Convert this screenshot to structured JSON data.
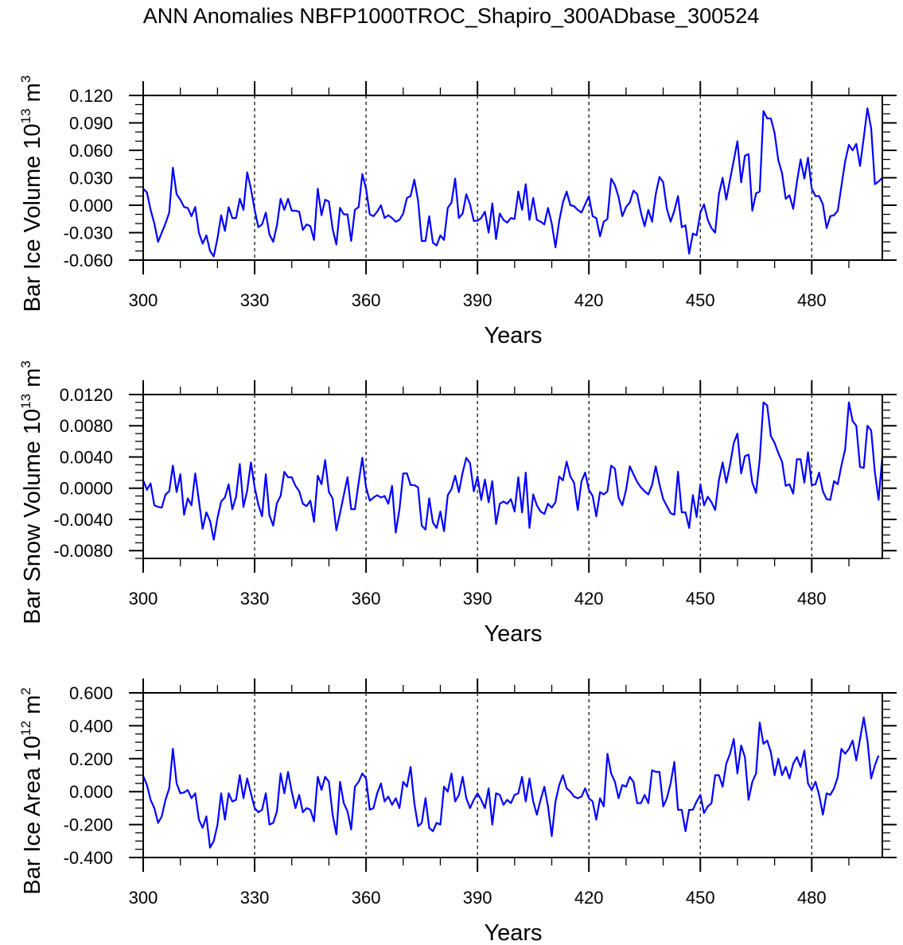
{
  "title": "ANN Anomalies NBFP1000TROC_Shapiro_300ADbase_300524",
  "colors": {
    "line": "#0000ff",
    "axis": "#000000",
    "grid": "#000000",
    "background": "#ffffff"
  },
  "chart_data": [
    {
      "type": "line",
      "ylabel": "Bar Ice Volume 10",
      "ylabel_exp": "13",
      "ylabel_unit": " m",
      "ylabel_unit_exp": "3",
      "xlabel": "Years",
      "xlim": [
        300,
        499
      ],
      "ylim": [
        -0.06,
        0.12
      ],
      "yticks": [
        "0.120",
        "0.090",
        "0.060",
        "0.030",
        "0.000",
        "-0.030",
        "-0.060"
      ],
      "ytick_values": [
        0.12,
        0.09,
        0.06,
        0.03,
        0.0,
        -0.03,
        -0.06
      ],
      "ymajor_step": 0.03,
      "yminor_step": 0.01,
      "xticks": [
        "300",
        "330",
        "360",
        "390",
        "420",
        "450",
        "480"
      ],
      "xtick_values": [
        300,
        330,
        360,
        390,
        420,
        450,
        480
      ],
      "xminor_step": 10,
      "grid": "vertical dashed at major x ticks",
      "x_start": 300,
      "series": [
        {
          "name": "Bar Ice Volume",
          "values": [
            0.018,
            0.014,
            -0.005,
            -0.02,
            -0.04,
            -0.03,
            -0.02,
            -0.008,
            0.041,
            0.012,
            0.006,
            -0.002,
            -0.003,
            -0.012,
            -0.002,
            -0.03,
            -0.042,
            -0.033,
            -0.05,
            -0.056,
            -0.036,
            -0.011,
            -0.028,
            -0.002,
            -0.014,
            -0.014,
            0.007,
            -0.005,
            0.036,
            0.018,
            -0.005,
            -0.024,
            -0.021,
            -0.008,
            -0.032,
            -0.04,
            -0.022,
            0.007,
            -0.005,
            0.007,
            -0.006,
            -0.006,
            -0.007,
            -0.027,
            -0.021,
            -0.023,
            -0.038,
            0.018,
            -0.011,
            0.006,
            0.004,
            -0.026,
            -0.043,
            -0.003,
            -0.01,
            -0.01,
            -0.039,
            -0.005,
            -0.002,
            0.034,
            0.018,
            -0.01,
            -0.012,
            -0.007,
            0.0,
            -0.014,
            -0.011,
            -0.014,
            -0.018,
            -0.016,
            -0.009,
            0.008,
            0.01,
            0.028,
            0.005,
            -0.039,
            -0.039,
            -0.012,
            -0.041,
            -0.044,
            -0.033,
            -0.038,
            -0.003,
            0.003,
            0.029,
            -0.014,
            -0.009,
            0.012,
            0.001,
            -0.017,
            -0.017,
            -0.014,
            -0.007,
            -0.03,
            0.002,
            -0.037,
            -0.009,
            -0.016,
            -0.019,
            -0.014,
            -0.015,
            0.015,
            -0.005,
            0.023,
            -0.016,
            0.008,
            -0.016,
            -0.018,
            -0.021,
            -0.003,
            -0.02,
            -0.046,
            -0.017,
            0.003,
            0.015,
            0.0,
            -0.001,
            -0.005,
            -0.008,
            0.001,
            0.01,
            -0.012,
            -0.014,
            -0.034,
            -0.018,
            -0.015,
            0.029,
            0.022,
            0.009,
            -0.012,
            -0.002,
            0.003,
            0.016,
            0.012,
            -0.008,
            -0.023,
            -0.005,
            -0.018,
            0.012,
            0.031,
            0.025,
            -0.004,
            -0.018,
            -0.006,
            0.01,
            -0.024,
            -0.022,
            -0.053,
            -0.031,
            -0.033,
            -0.008,
            0.001,
            -0.016,
            -0.025,
            -0.03,
            0.012,
            0.03,
            0.006,
            0.028,
            0.049,
            0.07,
            0.025,
            0.054,
            0.056,
            -0.006,
            0.013,
            0.015,
            0.103,
            0.095,
            0.095,
            0.079,
            0.049,
            0.035,
            0.007,
            0.011,
            -0.004,
            0.025,
            0.05,
            0.029,
            0.052,
            0.018,
            0.01,
            0.01,
            0.001,
            -0.025,
            -0.012,
            -0.011,
            -0.006,
            0.021,
            0.048,
            0.066,
            0.06,
            0.067,
            0.043,
            0.074,
            0.106,
            0.084,
            0.023,
            0.026,
            0.03
          ]
        }
      ]
    },
    {
      "type": "line",
      "ylabel": "Bar Snow Volume 10",
      "ylabel_exp": "13",
      "ylabel_unit": " m",
      "ylabel_unit_exp": "3",
      "xlabel": "Years",
      "xlim": [
        300,
        499
      ],
      "ylim": [
        -0.009,
        0.012
      ],
      "yticks": [
        "0.0120",
        "0.0080",
        "0.0040",
        "0.0000",
        "-0.0040",
        "-0.0080"
      ],
      "ytick_values": [
        0.012,
        0.008,
        0.004,
        0.0,
        -0.004,
        -0.008
      ],
      "ymajor_step": 0.004,
      "yminor_step": 0.001,
      "xticks": [
        "300",
        "330",
        "360",
        "390",
        "420",
        "450",
        "480"
      ],
      "xtick_values": [
        300,
        330,
        360,
        390,
        420,
        450,
        480
      ],
      "xminor_step": 10,
      "grid": "vertical dashed at major x ticks",
      "x_start": 300,
      "series": [
        {
          "name": "Bar Snow Volume",
          "values": [
            0.001,
            -0.0002,
            0.0006,
            -0.0022,
            -0.0024,
            -0.0025,
            -0.0008,
            -0.0004,
            0.0029,
            -0.0005,
            0.0018,
            -0.0034,
            -0.0013,
            -0.0022,
            0.0019,
            -0.0016,
            -0.0052,
            -0.0031,
            -0.0042,
            -0.0066,
            -0.0038,
            -0.0017,
            -0.0012,
            0.0005,
            -0.0027,
            -0.0011,
            0.0031,
            -0.0024,
            -0.0003,
            0.0033,
            0.0001,
            -0.0021,
            -0.0036,
            0.0018,
            -0.0035,
            -0.0048,
            -0.0019,
            -0.001,
            0.0021,
            0.0014,
            0.0014,
            0.0003,
            -0.0004,
            -0.002,
            -0.0023,
            -0.0016,
            -0.0043,
            0.0016,
            0.0005,
            0.0036,
            -0.0005,
            -0.0013,
            -0.0054,
            -0.0032,
            -0.0009,
            0.0014,
            -0.0027,
            -0.0027,
            0.0007,
            0.0039,
            0.0001,
            -0.0016,
            -0.0012,
            -0.0009,
            -0.0012,
            -0.001,
            -0.002,
            0.0003,
            -0.0057,
            -0.0027,
            0.0019,
            0.0019,
            0.0004,
            0.0004,
            0.0001,
            -0.0048,
            -0.0053,
            -0.0013,
            -0.0044,
            -0.0051,
            -0.003,
            -0.0055,
            -0.0009,
            -0.0001,
            0.0016,
            -0.0005,
            0.002,
            0.0039,
            0.0032,
            -0.0004,
            0.0015,
            -0.0015,
            0.0011,
            -0.0018,
            0.0009,
            -0.0046,
            -0.002,
            -0.0017,
            -0.002,
            -0.0014,
            -0.003,
            0.0014,
            -0.0031,
            0.002,
            -0.0051,
            -0.0008,
            -0.0022,
            -0.003,
            -0.0033,
            -0.002,
            -0.0025,
            -0.0018,
            0.0015,
            0.001,
            0.0034,
            0.0015,
            0.0007,
            -0.0028,
            0.0009,
            0.002,
            -0.0002,
            -0.001,
            -0.0036,
            -0.0005,
            -0.0008,
            -0.0004,
            0.0029,
            0.0025,
            -0.0012,
            -0.0022,
            -0.0002,
            0.0028,
            0.0018,
            0.0008,
            0.0001,
            -0.0004,
            -0.0008,
            0.0004,
            0.0028,
            0.0005,
            -0.0014,
            -0.0023,
            -0.0032,
            -0.0034,
            0.0021,
            -0.0031,
            -0.0031,
            -0.0051,
            -0.0009,
            -0.0037,
            0.0005,
            -0.0022,
            -0.0011,
            -0.0018,
            -0.0028,
            0.001,
            0.0033,
            0.0007,
            0.003,
            0.0058,
            0.007,
            0.0019,
            0.0041,
            0.0043,
            0.0007,
            -0.0006,
            0.0037,
            0.011,
            0.0106,
            0.0067,
            0.0058,
            0.0045,
            0.0034,
            0.0003,
            0.0005,
            -0.0007,
            0.0037,
            0.0037,
            0.0007,
            0.0046,
            0.0004,
            0.0005,
            0.002,
            -0.0004,
            -0.0014,
            -0.0015,
            0.0009,
            0.0005,
            0.0029,
            0.005,
            0.011,
            0.0086,
            0.008,
            0.0027,
            0.0026,
            0.008,
            0.0074,
            0.002,
            -0.0015,
            0.004
          ]
        }
      ]
    },
    {
      "type": "line",
      "ylabel": "Bar Ice Area 10",
      "ylabel_exp": "12",
      "ylabel_unit": " m",
      "ylabel_unit_exp": "2",
      "xlabel": "Years",
      "xlim": [
        300,
        499
      ],
      "ylim": [
        -0.4,
        0.6
      ],
      "yticks": [
        "0.600",
        "0.400",
        "0.200",
        "0.000",
        "-0.200",
        "-0.400"
      ],
      "ytick_values": [
        0.6,
        0.4,
        0.2,
        0.0,
        -0.2,
        -0.4
      ],
      "ymajor_step": 0.2,
      "yminor_step": 0.05,
      "xticks": [
        "300",
        "330",
        "360",
        "390",
        "420",
        "450",
        "480"
      ],
      "xtick_values": [
        300,
        330,
        360,
        390,
        420,
        450,
        480
      ],
      "xminor_step": 10,
      "grid": "vertical dashed at major x ticks",
      "x_start": 300,
      "series": [
        {
          "name": "Bar Ice Area",
          "values": [
            0.095,
            0.04,
            -0.05,
            -0.1,
            -0.19,
            -0.15,
            -0.05,
            0.02,
            0.26,
            0.05,
            -0.01,
            -0.005,
            0.01,
            -0.04,
            -0.01,
            -0.17,
            -0.22,
            -0.15,
            -0.34,
            -0.3,
            -0.2,
            -0.01,
            -0.17,
            -0.01,
            -0.06,
            -0.05,
            0.1,
            -0.04,
            0.08,
            -0.01,
            -0.1,
            -0.125,
            -0.11,
            -0.01,
            -0.2,
            -0.19,
            -0.12,
            0.11,
            -0.01,
            0.12,
            0.0,
            -0.1,
            -0.02,
            -0.125,
            -0.1,
            -0.11,
            -0.18,
            0.09,
            0.01,
            0.09,
            0.06,
            -0.14,
            -0.26,
            0.06,
            -0.07,
            -0.12,
            -0.23,
            0.03,
            0.06,
            0.11,
            0.08,
            -0.11,
            -0.1,
            -0.01,
            0.05,
            -0.06,
            -0.03,
            -0.08,
            -0.04,
            -0.1,
            0.06,
            0.03,
            0.15,
            -0.07,
            -0.21,
            -0.19,
            -0.04,
            -0.22,
            -0.24,
            -0.19,
            -0.2,
            0.03,
            0.0,
            0.11,
            -0.06,
            -0.02,
            0.09,
            -0.04,
            -0.1,
            -0.05,
            -0.01,
            -0.05,
            -0.1,
            0.02,
            -0.2,
            -0.01,
            -0.02,
            -0.08,
            -0.05,
            -0.07,
            -0.02,
            -0.01,
            0.09,
            -0.06,
            0.08,
            -0.06,
            -0.14,
            -0.05,
            0.03,
            -0.09,
            -0.27,
            -0.06,
            0.04,
            0.1,
            0.02,
            0.0,
            -0.03,
            -0.04,
            -0.03,
            0.02,
            -0.04,
            -0.06,
            -0.17,
            -0.04,
            -0.09,
            0.23,
            0.11,
            0.06,
            -0.04,
            0.04,
            0.03,
            0.09,
            0.06,
            -0.07,
            -0.07,
            -0.02,
            -0.07,
            0.13,
            0.12,
            0.12,
            -0.09,
            -0.04,
            0.05,
            0.18,
            -0.11,
            -0.11,
            -0.24,
            -0.11,
            -0.11,
            -0.06,
            -0.02,
            -0.13,
            -0.09,
            -0.07,
            0.1,
            0.1,
            0.03,
            0.17,
            0.23,
            0.32,
            0.11,
            0.28,
            0.21,
            -0.05,
            0.06,
            0.11,
            0.42,
            0.29,
            0.31,
            0.24,
            0.1,
            0.2,
            0.1,
            0.15,
            0.08,
            0.17,
            0.21,
            0.15,
            0.25,
            0.05,
            0.01,
            0.06,
            -0.02,
            -0.14,
            -0.01,
            -0.02,
            0.02,
            0.09,
            0.26,
            0.23,
            0.26,
            0.31,
            0.19,
            0.32,
            0.45,
            0.31,
            0.08,
            0.16,
            0.22
          ]
        }
      ]
    }
  ]
}
